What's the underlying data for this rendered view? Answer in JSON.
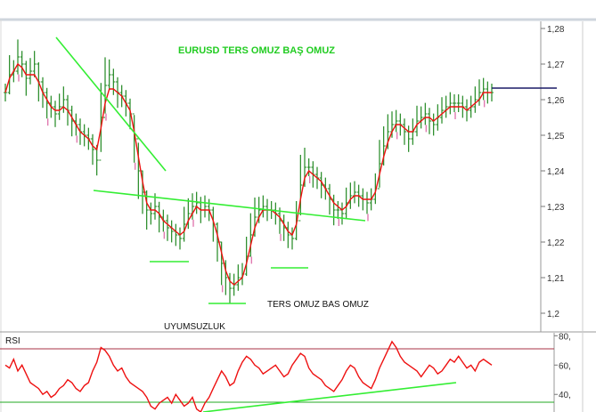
{
  "chart_data": [
    {
      "type": "candlestick",
      "title": "EURUSD TERS OMUZ BAŞ OMUZ",
      "annotations": [
        "TERS OMUZ BAS OMUZ",
        "UYUMSUZLUK"
      ],
      "yticks": [
        "1,28",
        "1,27",
        "1,26",
        "1,25",
        "1,24",
        "1,23",
        "1,22",
        "1,21",
        "1,2"
      ],
      "ylim": [
        1.197,
        1.281
      ],
      "series": [
        {
          "style": "price-bars",
          "values": [
            1.262,
            1.267,
            1.268,
            1.272,
            1.27,
            1.266,
            1.268,
            1.27,
            1.265,
            1.262,
            1.259,
            1.258,
            1.256,
            1.258,
            1.26,
            1.257,
            1.254,
            1.253,
            1.251,
            1.25,
            1.249,
            1.246,
            1.243,
            1.255,
            1.264,
            1.267,
            1.265,
            1.262,
            1.261,
            1.259,
            1.256,
            1.249,
            1.24,
            1.234,
            1.229,
            1.228,
            1.23,
            1.227,
            1.226,
            1.224,
            1.223,
            1.222,
            1.221,
            1.225,
            1.228,
            1.23,
            1.231,
            1.229,
            1.23,
            1.229,
            1.225,
            1.22,
            1.214,
            1.21,
            1.207,
            1.208,
            1.21,
            1.211,
            1.216,
            1.222,
            1.227,
            1.229,
            1.23,
            1.229,
            1.229,
            1.228,
            1.226,
            1.224,
            1.222,
            1.221,
            1.226,
            1.236,
            1.241,
            1.241,
            1.239,
            1.238,
            1.236,
            1.235,
            1.232,
            1.229,
            1.229,
            1.228,
            1.231,
            1.233,
            1.234,
            1.233,
            1.232,
            1.231,
            1.232,
            1.235,
            1.242,
            1.247,
            1.251,
            1.253,
            1.254,
            1.253,
            1.251,
            1.249,
            1.251,
            1.254,
            1.255,
            1.256,
            1.254,
            1.253,
            1.255,
            1.257,
            1.258,
            1.259,
            1.259,
            1.259,
            1.258,
            1.257,
            1.258,
            1.26,
            1.262,
            1.263,
            1.262,
            1.262
          ]
        },
        {
          "style": "trend-line",
          "color": "#ee1111",
          "values": [
            1.262,
            1.266,
            1.268,
            1.27,
            1.269,
            1.267,
            1.267,
            1.267,
            1.265,
            1.262,
            1.26,
            1.258,
            1.257,
            1.257,
            1.258,
            1.257,
            1.255,
            1.253,
            1.251,
            1.25,
            1.249,
            1.247,
            1.246,
            1.252,
            1.259,
            1.263,
            1.263,
            1.262,
            1.261,
            1.259,
            1.257,
            1.251,
            1.244,
            1.237,
            1.231,
            1.229,
            1.229,
            1.228,
            1.226,
            1.225,
            1.224,
            1.223,
            1.222,
            1.223,
            1.226,
            1.228,
            1.23,
            1.229,
            1.229,
            1.229,
            1.226,
            1.222,
            1.217,
            1.212,
            1.209,
            1.208,
            1.209,
            1.21,
            1.214,
            1.219,
            1.224,
            1.227,
            1.229,
            1.229,
            1.229,
            1.228,
            1.227,
            1.225,
            1.223,
            1.222,
            1.225,
            1.232,
            1.238,
            1.24,
            1.239,
            1.238,
            1.237,
            1.235,
            1.233,
            1.231,
            1.23,
            1.229,
            1.23,
            1.232,
            1.233,
            1.233,
            1.232,
            1.232,
            1.232,
            1.234,
            1.239,
            1.244,
            1.248,
            1.251,
            1.253,
            1.253,
            1.252,
            1.251,
            1.251,
            1.253,
            1.254,
            1.255,
            1.255,
            1.254,
            1.255,
            1.256,
            1.257,
            1.258,
            1.258,
            1.258,
            1.258,
            1.257,
            1.258,
            1.259,
            1.26,
            1.262,
            1.262,
            1.262
          ]
        }
      ],
      "colors": {
        "bars": "#228822",
        "wick_extremes": "#e07ab0",
        "drawings": "#33ee33",
        "level_line": "#1a1a66",
        "trend": "#ee1111"
      }
    },
    {
      "type": "line",
      "title": "RSI",
      "yticks": [
        "80,",
        "60,",
        "40,"
      ],
      "ylim": [
        28,
        82
      ],
      "series": [
        {
          "color": "#ee1111",
          "values": [
            60,
            58,
            64,
            56,
            60,
            54,
            48,
            46,
            44,
            40,
            42,
            38,
            40,
            44,
            46,
            50,
            48,
            44,
            42,
            46,
            48,
            56,
            62,
            72,
            70,
            66,
            60,
            56,
            58,
            52,
            48,
            46,
            44,
            42,
            38,
            32,
            30,
            34,
            36,
            38,
            34,
            40,
            36,
            32,
            34,
            38,
            30,
            28,
            34,
            38,
            44,
            50,
            56,
            52,
            46,
            48,
            56,
            62,
            66,
            64,
            60,
            58,
            54,
            56,
            58,
            60,
            56,
            52,
            54,
            60,
            64,
            68,
            66,
            58,
            54,
            52,
            50,
            46,
            44,
            42,
            46,
            50,
            56,
            60,
            58,
            52,
            48,
            46,
            44,
            50,
            58,
            64,
            70,
            76,
            72,
            66,
            62,
            60,
            58,
            56,
            52,
            56,
            60,
            58,
            54,
            56,
            60,
            64,
            62,
            66,
            62,
            58,
            60,
            56,
            62,
            64,
            62,
            60
          ]
        }
      ]
    }
  ]
}
